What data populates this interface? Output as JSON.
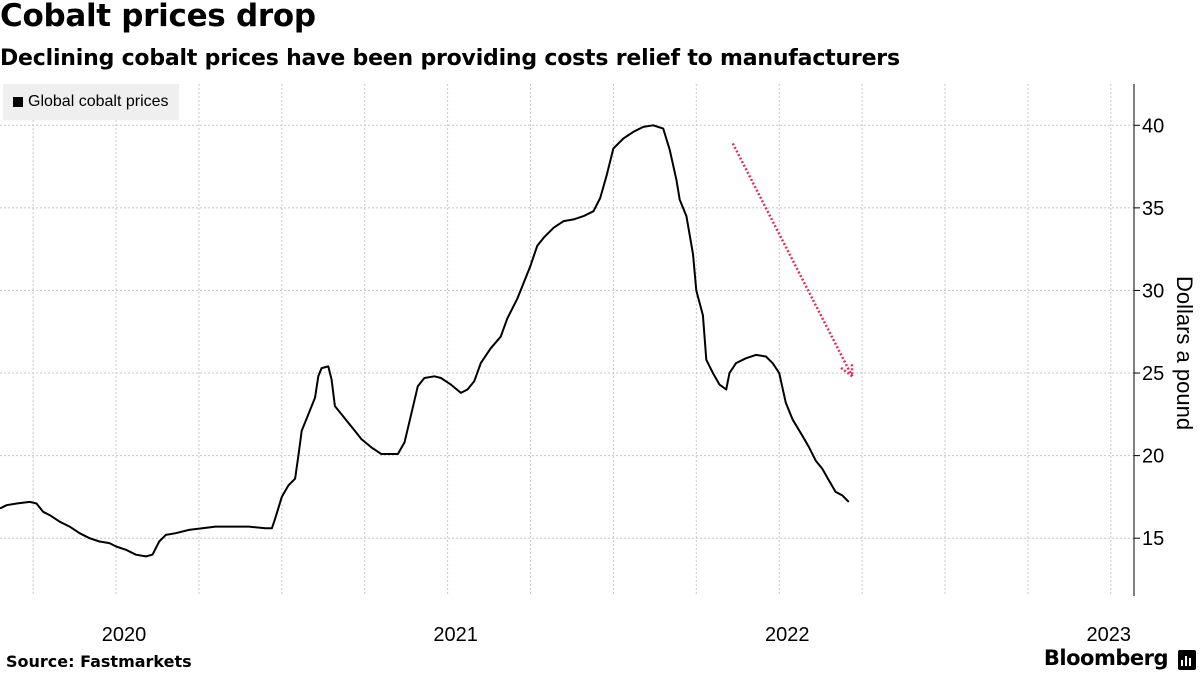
{
  "chart_data": {
    "type": "line",
    "title": "Cobalt prices drop",
    "subtitle": "Declining cobalt prices have been providing costs relief to manufacturers",
    "legend": [
      "Global cobalt prices"
    ],
    "ylabel": "Dollars a pound",
    "xlabel": "",
    "ylim": [
      11.5,
      42.5
    ],
    "yticks": [
      15,
      20,
      25,
      30,
      35,
      40
    ],
    "xlim": [
      2019.65,
      2023.07
    ],
    "xtick_labels": [
      {
        "label": "2020",
        "x": 2020.0
      },
      {
        "label": "2021",
        "x": 2021.0
      },
      {
        "label": "2022",
        "x": 2022.0
      },
      {
        "label": "2023",
        "x": 2023.0
      }
    ],
    "grid": true,
    "series": [
      {
        "name": "Global cobalt prices",
        "color": "#000000",
        "points": [
          [
            2019.65,
            16.8
          ],
          [
            2019.67,
            17.0
          ],
          [
            2019.7,
            17.1
          ],
          [
            2019.74,
            17.2
          ],
          [
            2019.76,
            17.1
          ],
          [
            2019.78,
            16.6
          ],
          [
            2019.8,
            16.4
          ],
          [
            2019.83,
            16.0
          ],
          [
            2019.86,
            15.7
          ],
          [
            2019.89,
            15.3
          ],
          [
            2019.92,
            15.0
          ],
          [
            2019.95,
            14.8
          ],
          [
            2019.98,
            14.7
          ],
          [
            2020.0,
            14.5
          ],
          [
            2020.03,
            14.3
          ],
          [
            2020.06,
            14.0
          ],
          [
            2020.09,
            13.9
          ],
          [
            2020.11,
            14.0
          ],
          [
            2020.13,
            14.8
          ],
          [
            2020.15,
            15.2
          ],
          [
            2020.18,
            15.3
          ],
          [
            2020.22,
            15.5
          ],
          [
            2020.26,
            15.6
          ],
          [
            2020.3,
            15.7
          ],
          [
            2020.35,
            15.7
          ],
          [
            2020.4,
            15.7
          ],
          [
            2020.45,
            15.6
          ],
          [
            2020.47,
            15.6
          ],
          [
            2020.48,
            16.2
          ],
          [
            2020.5,
            17.5
          ],
          [
            2020.52,
            18.2
          ],
          [
            2020.54,
            18.6
          ],
          [
            2020.55,
            20.0
          ],
          [
            2020.56,
            21.5
          ],
          [
            2020.58,
            22.5
          ],
          [
            2020.6,
            23.5
          ],
          [
            2020.61,
            24.8
          ],
          [
            2020.62,
            25.3
          ],
          [
            2020.64,
            25.4
          ],
          [
            2020.65,
            24.6
          ],
          [
            2020.66,
            23.0
          ],
          [
            2020.68,
            22.5
          ],
          [
            2020.7,
            22.0
          ],
          [
            2020.72,
            21.5
          ],
          [
            2020.74,
            21.0
          ],
          [
            2020.77,
            20.5
          ],
          [
            2020.8,
            20.1
          ],
          [
            2020.82,
            20.1
          ],
          [
            2020.85,
            20.1
          ],
          [
            2020.87,
            20.8
          ],
          [
            2020.89,
            22.5
          ],
          [
            2020.91,
            24.2
          ],
          [
            2020.93,
            24.7
          ],
          [
            2020.96,
            24.8
          ],
          [
            2020.98,
            24.7
          ],
          [
            2021.01,
            24.3
          ],
          [
            2021.04,
            23.8
          ],
          [
            2021.06,
            24.0
          ],
          [
            2021.08,
            24.5
          ],
          [
            2021.1,
            25.6
          ],
          [
            2021.13,
            26.5
          ],
          [
            2021.16,
            27.2
          ],
          [
            2021.18,
            28.3
          ],
          [
            2021.21,
            29.5
          ],
          [
            2021.23,
            30.5
          ],
          [
            2021.25,
            31.5
          ],
          [
            2021.27,
            32.7
          ],
          [
            2021.29,
            33.2
          ],
          [
            2021.32,
            33.8
          ],
          [
            2021.35,
            34.2
          ],
          [
            2021.38,
            34.3
          ],
          [
            2021.41,
            34.5
          ],
          [
            2021.44,
            34.8
          ],
          [
            2021.46,
            35.6
          ],
          [
            2021.48,
            37.0
          ],
          [
            2021.5,
            38.6
          ],
          [
            2021.53,
            39.2
          ],
          [
            2021.56,
            39.6
          ],
          [
            2021.59,
            39.9
          ],
          [
            2021.62,
            40.0
          ],
          [
            2021.65,
            39.8
          ],
          [
            2021.67,
            38.5
          ],
          [
            2021.69,
            36.7
          ],
          [
            2021.7,
            35.5
          ],
          [
            2021.72,
            34.5
          ],
          [
            2021.74,
            32.2
          ],
          [
            2021.75,
            30.0
          ],
          [
            2021.77,
            28.5
          ],
          [
            2021.78,
            25.8
          ],
          [
            2021.8,
            25.0
          ],
          [
            2021.82,
            24.3
          ],
          [
            2021.84,
            24.0
          ],
          [
            2021.85,
            25.0
          ],
          [
            2021.87,
            25.6
          ],
          [
            2021.9,
            25.9
          ],
          [
            2021.93,
            26.1
          ],
          [
            2021.96,
            26.0
          ],
          [
            2021.98,
            25.6
          ],
          [
            2022.0,
            25.0
          ],
          [
            2022.02,
            23.2
          ],
          [
            2022.04,
            22.2
          ],
          [
            2022.07,
            21.2
          ],
          [
            2022.09,
            20.5
          ],
          [
            2022.11,
            19.7
          ],
          [
            2022.13,
            19.2
          ],
          [
            2022.15,
            18.5
          ],
          [
            2022.17,
            17.8
          ],
          [
            2022.19,
            17.6
          ],
          [
            2022.21,
            17.2
          ]
        ]
      }
    ],
    "annotations": [
      {
        "type": "arrow",
        "style": "dotted",
        "color": "#e0305a",
        "from": [
          2021.86,
          38.9
        ],
        "to": [
          2022.22,
          24.8
        ]
      }
    ]
  },
  "source": "Source: Fastmarkets",
  "brand": "Bloomberg"
}
